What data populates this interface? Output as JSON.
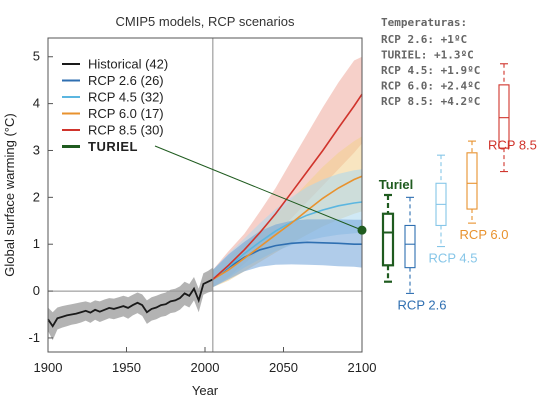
{
  "chart_data": {
    "type": "line",
    "title": "CMIP5 models, RCP scenarios",
    "xlabel": "Year",
    "ylabel": "Global surface warming (°C)",
    "xlim": [
      1900,
      2100
    ],
    "ylim": [
      -1.3,
      5.4
    ],
    "xticks": [
      1900,
      1950,
      2000,
      2050,
      2100
    ],
    "yticks": [
      -1,
      0,
      1,
      2,
      3,
      4,
      5
    ],
    "vertical_line_year": 2005,
    "series": [
      {
        "name": "Historical (42)",
        "color": "#1a1a1a",
        "band_color": "#9a9a9a",
        "x": [
          1900,
          1903,
          1906,
          1909,
          1912,
          1915,
          1918,
          1921,
          1924,
          1927,
          1930,
          1933,
          1936,
          1939,
          1942,
          1945,
          1948,
          1951,
          1954,
          1957,
          1960,
          1963,
          1966,
          1969,
          1972,
          1975,
          1978,
          1981,
          1984,
          1987,
          1990,
          1993,
          1996,
          1999,
          2002,
          2005
        ],
        "values": [
          -0.6,
          -0.75,
          -0.58,
          -0.55,
          -0.52,
          -0.5,
          -0.48,
          -0.45,
          -0.42,
          -0.46,
          -0.4,
          -0.44,
          -0.4,
          -0.36,
          -0.38,
          -0.35,
          -0.32,
          -0.36,
          -0.3,
          -0.25,
          -0.3,
          -0.45,
          -0.38,
          -0.35,
          -0.3,
          -0.28,
          -0.22,
          -0.2,
          -0.15,
          -0.05,
          -0.1,
          0.05,
          -0.2,
          0.15,
          0.2,
          0.25
        ],
        "upper": [
          -0.35,
          -0.45,
          -0.35,
          -0.32,
          -0.3,
          -0.28,
          -0.26,
          -0.24,
          -0.22,
          -0.25,
          -0.2,
          -0.22,
          -0.18,
          -0.15,
          -0.16,
          -0.13,
          -0.1,
          -0.13,
          -0.08,
          -0.03,
          -0.07,
          -0.2,
          -0.13,
          -0.1,
          -0.06,
          -0.03,
          0.03,
          0.05,
          0.1,
          0.2,
          0.15,
          0.3,
          0.05,
          0.38,
          0.43,
          0.5
        ],
        "lower": [
          -0.85,
          -1.05,
          -0.82,
          -0.78,
          -0.75,
          -0.72,
          -0.7,
          -0.67,
          -0.63,
          -0.68,
          -0.61,
          -0.66,
          -0.62,
          -0.58,
          -0.6,
          -0.57,
          -0.54,
          -0.59,
          -0.52,
          -0.47,
          -0.53,
          -0.7,
          -0.63,
          -0.6,
          -0.55,
          -0.53,
          -0.47,
          -0.45,
          -0.4,
          -0.3,
          -0.35,
          -0.2,
          -0.45,
          -0.08,
          -0.03,
          0.0
        ]
      },
      {
        "name": "RCP 2.6 (26)",
        "color": "#2f6fb1",
        "band_color": "#6fa2d8",
        "x": [
          2005,
          2015,
          2025,
          2035,
          2045,
          2055,
          2065,
          2075,
          2085,
          2095,
          2100
        ],
        "values": [
          0.25,
          0.5,
          0.72,
          0.88,
          0.97,
          1.02,
          1.04,
          1.03,
          1.02,
          1.0,
          1.0
        ],
        "upper": [
          0.45,
          0.78,
          1.05,
          1.28,
          1.42,
          1.5,
          1.53,
          1.53,
          1.53,
          1.52,
          1.52
        ],
        "lower": [
          0.08,
          0.25,
          0.42,
          0.52,
          0.56,
          0.57,
          0.56,
          0.55,
          0.53,
          0.52,
          0.5
        ]
      },
      {
        "name": "RCP 4.5 (32)",
        "color": "#5bb6e0",
        "band_color": "#a9d7ee",
        "x": [
          2005,
          2015,
          2025,
          2035,
          2045,
          2055,
          2065,
          2075,
          2085,
          2095,
          2100
        ],
        "values": [
          0.25,
          0.52,
          0.8,
          1.05,
          1.28,
          1.47,
          1.62,
          1.73,
          1.82,
          1.88,
          1.9
        ],
        "upper": [
          0.45,
          0.8,
          1.12,
          1.45,
          1.75,
          2.0,
          2.22,
          2.38,
          2.5,
          2.58,
          2.6
        ],
        "lower": [
          0.08,
          0.28,
          0.5,
          0.68,
          0.85,
          0.98,
          1.08,
          1.15,
          1.2,
          1.23,
          1.25
        ]
      },
      {
        "name": "RCP 6.0 (17)",
        "color": "#e8922e",
        "band_color": "#f3cf8c",
        "x": [
          2005,
          2015,
          2025,
          2035,
          2045,
          2055,
          2065,
          2075,
          2085,
          2095,
          2100
        ],
        "values": [
          0.25,
          0.45,
          0.7,
          0.95,
          1.2,
          1.45,
          1.72,
          1.98,
          2.2,
          2.38,
          2.45
        ],
        "upper": [
          0.45,
          0.72,
          1.0,
          1.3,
          1.62,
          1.95,
          2.3,
          2.65,
          2.95,
          3.2,
          3.3
        ],
        "lower": [
          0.08,
          0.22,
          0.42,
          0.62,
          0.82,
          1.02,
          1.2,
          1.38,
          1.52,
          1.65,
          1.7
        ]
      },
      {
        "name": "RCP 8.5 (30)",
        "color": "#d0342c",
        "band_color": "#efaa9c",
        "x": [
          2005,
          2015,
          2025,
          2035,
          2045,
          2055,
          2065,
          2075,
          2085,
          2095,
          2100
        ],
        "values": [
          0.25,
          0.55,
          0.88,
          1.25,
          1.65,
          2.1,
          2.55,
          3.0,
          3.48,
          3.95,
          4.2
        ],
        "upper": [
          0.45,
          0.85,
          1.22,
          1.7,
          2.2,
          2.78,
          3.35,
          3.92,
          4.45,
          4.92,
          5.0
        ],
        "lower": [
          0.08,
          0.3,
          0.58,
          0.88,
          1.2,
          1.55,
          1.9,
          2.25,
          2.6,
          2.95,
          3.15
        ]
      }
    ],
    "highlight": {
      "name": "TURIEL",
      "color": "#1f5b1f",
      "year": 2100,
      "value": 1.3,
      "leader_from_year": 2005,
      "leader_from_value": 3.95
    },
    "legend": {
      "placement": "top-left",
      "items": [
        {
          "label": "Historical (42)",
          "color": "#1a1a1a",
          "bold": false
        },
        {
          "label": "RCP 2.6 (26)",
          "color": "#2f6fb1",
          "bold": false
        },
        {
          "label": "RCP 4.5 (32)",
          "color": "#e0eef8",
          "swatch": "#5bb6e0",
          "bold": false
        },
        {
          "label": "RCP 6.0 (17)",
          "color": "#e8922e",
          "bold": false
        },
        {
          "label": "RCP 8.5 (30)",
          "color": "#d0342c",
          "bold": false
        },
        {
          "label": "TURIEL",
          "color": "#1f5b1f",
          "bold": true
        }
      ]
    },
    "boxplots": [
      {
        "label": "Turiel",
        "color": "#1f5b1f",
        "whisker_low": 0.2,
        "q1": 0.55,
        "median": 1.25,
        "q3": 1.65,
        "whisker_high": 2.05,
        "dashed_style": "heavy",
        "label_position": "above"
      },
      {
        "label": "RCP 2.6",
        "color": "#2f6fb1",
        "whisker_low": -0.05,
        "q1": 0.5,
        "median": 1.0,
        "q3": 1.4,
        "whisker_high": 2.0,
        "label_position": "below"
      },
      {
        "label": "RCP 4.5",
        "color": "#86c6e8",
        "whisker_low": 0.95,
        "q1": 1.4,
        "median": 1.85,
        "q3": 2.3,
        "whisker_high": 2.9,
        "label_position": "below"
      },
      {
        "label": "RCP 6.0",
        "color": "#e8922e",
        "whisker_low": 1.45,
        "q1": 1.75,
        "median": 2.3,
        "q3": 2.95,
        "whisker_high": 3.2,
        "label_position": "below"
      },
      {
        "label": "RCP 8.5",
        "color": "#d0342c",
        "whisker_low": 2.55,
        "q1": 3.05,
        "median": 3.7,
        "q3": 4.4,
        "whisker_high": 4.85,
        "label_position": "right"
      }
    ],
    "temperatures_panel": {
      "title": "Temperaturas:",
      "lines": [
        {
          "text": "RCP 2.6: +1ºC",
          "color": "#666666"
        },
        {
          "text": "TURIEL: +1.3ºC",
          "color": "#1f5b1f"
        },
        {
          "text": "RCP 4.5: +1.9ºC",
          "color": "#666666"
        },
        {
          "text": "RCP 6.0: +2.4ºC",
          "color": "#666666"
        },
        {
          "text": "RCP 8.5: +4.2ºC",
          "color": "#666666"
        }
      ]
    }
  }
}
